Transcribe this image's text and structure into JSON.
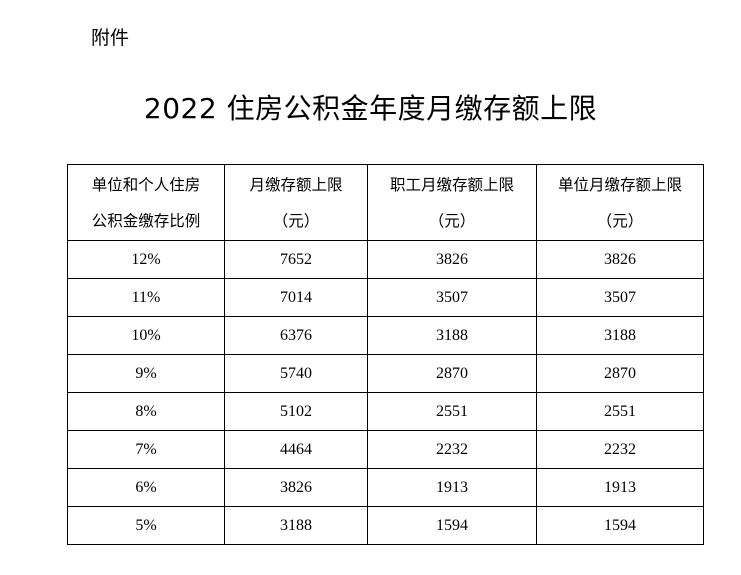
{
  "attachment_label": "附件",
  "title": "2022 住房公积金年度月缴存额上限",
  "table": {
    "headers": [
      [
        "单位和个人住房",
        "公积金缴存比例"
      ],
      [
        "月缴存额上限",
        "（元）"
      ],
      [
        "职工月缴存额上限",
        "（元）"
      ],
      [
        "单位月缴存额上限",
        "（元）"
      ]
    ],
    "rows": [
      [
        "12%",
        "7652",
        "3826",
        "3826"
      ],
      [
        "11%",
        "7014",
        "3507",
        "3507"
      ],
      [
        "10%",
        "6376",
        "3188",
        "3188"
      ],
      [
        "9%",
        "5740",
        "2870",
        "2870"
      ],
      [
        "8%",
        "5102",
        "2551",
        "2551"
      ],
      [
        "7%",
        "4464",
        "2232",
        "2232"
      ],
      [
        "6%",
        "3826",
        "1913",
        "1913"
      ],
      [
        "5%",
        "3188",
        "1594",
        "1594"
      ]
    ]
  }
}
